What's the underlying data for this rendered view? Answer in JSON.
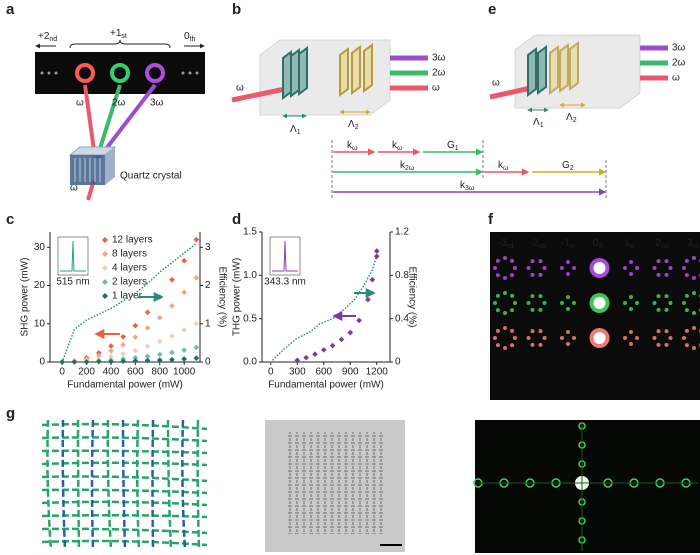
{
  "panel_labels": [
    "a",
    "b",
    "e",
    "c",
    "d",
    "f",
    "g"
  ],
  "panel_a": {
    "orders": [
      {
        "main": "+2",
        "sub": "nd"
      },
      {
        "main": "+1",
        "sub": "st"
      },
      {
        "main": "0",
        "sub": "th"
      }
    ],
    "beams": [
      "ω",
      "2ω",
      "3ω"
    ],
    "input": "ω",
    "crystal": "Quartz crystal"
  },
  "panel_b": {
    "outputs": [
      "3ω",
      "2ω",
      "ω"
    ],
    "input": "ω",
    "periods": [
      {
        "main": "Λ",
        "sub": "1"
      },
      {
        "main": "Λ",
        "sub": "2"
      }
    ],
    "vectors": [
      {
        "main": "k",
        "sub": "ω"
      },
      {
        "main": "k",
        "sub": "ω"
      },
      {
        "main": "G",
        "sub": "1"
      },
      {
        "main": "k",
        "sub": "2ω"
      },
      {
        "main": "k",
        "sub": "ω"
      },
      {
        "main": "G",
        "sub": "2"
      },
      {
        "main": "k",
        "sub": "3ω"
      }
    ]
  },
  "panel_e": {
    "outputs": [
      "3ω",
      "2ω",
      "ω"
    ],
    "input": "ω",
    "periods": [
      {
        "main": "Λ",
        "sub": "1"
      },
      {
        "main": "Λ",
        "sub": "2"
      }
    ]
  },
  "panel_f": {
    "orders": [
      {
        "main": "-3",
        "sub": "rd"
      },
      {
        "main": "-2",
        "sub": "nd"
      },
      {
        "main": "-1",
        "sub": "st"
      },
      {
        "main": "0",
        "sub": "th"
      },
      {
        "main": "1",
        "sub": "st"
      },
      {
        "main": "2",
        "sub": "nd"
      },
      {
        "main": "3",
        "sub": "rd"
      }
    ]
  },
  "chart_data": [
    {
      "type": "scatter",
      "xlabel": "Fundamental power (mW)",
      "ylabel": "SHG power (mW)",
      "y2label": "Efficiency (%)",
      "xlim": [
        -100,
        1130
      ],
      "xticks": [
        0,
        200,
        400,
        600,
        800,
        1000
      ],
      "ylim": [
        0,
        34
      ],
      "yticks": [
        0,
        10,
        20,
        30
      ],
      "y2lim": [
        0,
        3.4
      ],
      "y2ticks": [
        0,
        1,
        2,
        3
      ],
      "inset_label": "515 nm",
      "inset_color": "#2aa37a",
      "series": [
        {
          "name": "12 layers",
          "color": "#e8613c",
          "x": [
            0,
            100,
            200,
            300,
            400,
            500,
            600,
            700,
            800,
            900,
            1000,
            1100
          ],
          "values": [
            0,
            0.3,
            1.1,
            2.4,
            4.2,
            6.6,
            9.5,
            13,
            17,
            21.5,
            26.5,
            32
          ]
        },
        {
          "name": "8 layers",
          "color": "#f3a58a",
          "x": [
            0,
            100,
            200,
            300,
            400,
            500,
            600,
            700,
            800,
            900,
            1000,
            1100
          ],
          "values": [
            0,
            0.2,
            0.7,
            1.6,
            2.9,
            4.5,
            6.5,
            8.9,
            11.6,
            14.7,
            18.2,
            22
          ]
        },
        {
          "name": "4 layers",
          "color": "#f5cdb8",
          "x": [
            0,
            100,
            200,
            300,
            400,
            500,
            600,
            700,
            800,
            900,
            1000,
            1100
          ],
          "values": [
            0,
            0.1,
            0.4,
            0.8,
            1.4,
            2.1,
            3,
            4.1,
            5.4,
            6.8,
            8.4,
            10
          ]
        },
        {
          "name": "2 layers",
          "color": "#6cc1ad",
          "x": [
            0,
            100,
            200,
            300,
            400,
            500,
            600,
            700,
            800,
            900,
            1000,
            1100
          ],
          "values": [
            0,
            0,
            0.1,
            0.3,
            0.5,
            0.8,
            1.1,
            1.5,
            2,
            2.5,
            3.1,
            3.8
          ]
        },
        {
          "name": "1 layer",
          "color": "#1d6b6b",
          "x": [
            0,
            100,
            200,
            300,
            400,
            500,
            600,
            700,
            800,
            900,
            1000,
            1100
          ],
          "values": [
            0,
            0,
            0,
            0.1,
            0.1,
            0.2,
            0.3,
            0.4,
            0.5,
            0.6,
            0.8,
            1
          ]
        },
        {
          "color": "#2a8a7a",
          "axis": "y2",
          "line": "dotted",
          "x": [
            0,
            100,
            200,
            300,
            400,
            500,
            600,
            700,
            800,
            900,
            1000,
            1100
          ],
          "values": [
            0,
            0.85,
            1.1,
            1.25,
            1.4,
            1.6,
            1.8,
            2.05,
            2.35,
            2.6,
            2.85,
            3.1
          ]
        }
      ]
    },
    {
      "type": "scatter",
      "xlabel": "Fundamental power (mW)",
      "ylabel": "THG power (mW)",
      "y2label": "Efficiency (%)",
      "xlim": [
        -100,
        1350
      ],
      "xticks": [
        0,
        300,
        600,
        900,
        1200
      ],
      "ylim": [
        0,
        1.5
      ],
      "yticks": [
        {
          "value": 0,
          "label": "0.0"
        },
        0.5,
        {
          "value": 1,
          "label": "1.0"
        },
        1.5
      ],
      "y2lim": [
        0,
        1.2
      ],
      "y2ticks": [
        0,
        0.4,
        0.8,
        1.2
      ],
      "inset_label": "343.3 nm",
      "inset_color": "#8a44b8",
      "series": [
        {
          "color": "#7a3b9e",
          "x": [
            300,
            400,
            500,
            600,
            700,
            800,
            900,
            1000,
            1100,
            1150,
            1200,
            1200
          ],
          "values": [
            0.02,
            0.05,
            0.09,
            0.14,
            0.19,
            0.26,
            0.34,
            0.48,
            0.72,
            0.95,
            1.22,
            1.28
          ]
        },
        {
          "color": "#2a8a7a",
          "axis": "y2",
          "line": "dotted",
          "x": [
            0,
            150,
            300,
            450,
            550,
            700,
            850,
            950,
            1050,
            1150,
            1200
          ],
          "values": [
            0,
            0.12,
            0.22,
            0.28,
            0.35,
            0.4,
            0.5,
            0.58,
            0.7,
            0.85,
            0.98
          ]
        }
      ]
    }
  ]
}
